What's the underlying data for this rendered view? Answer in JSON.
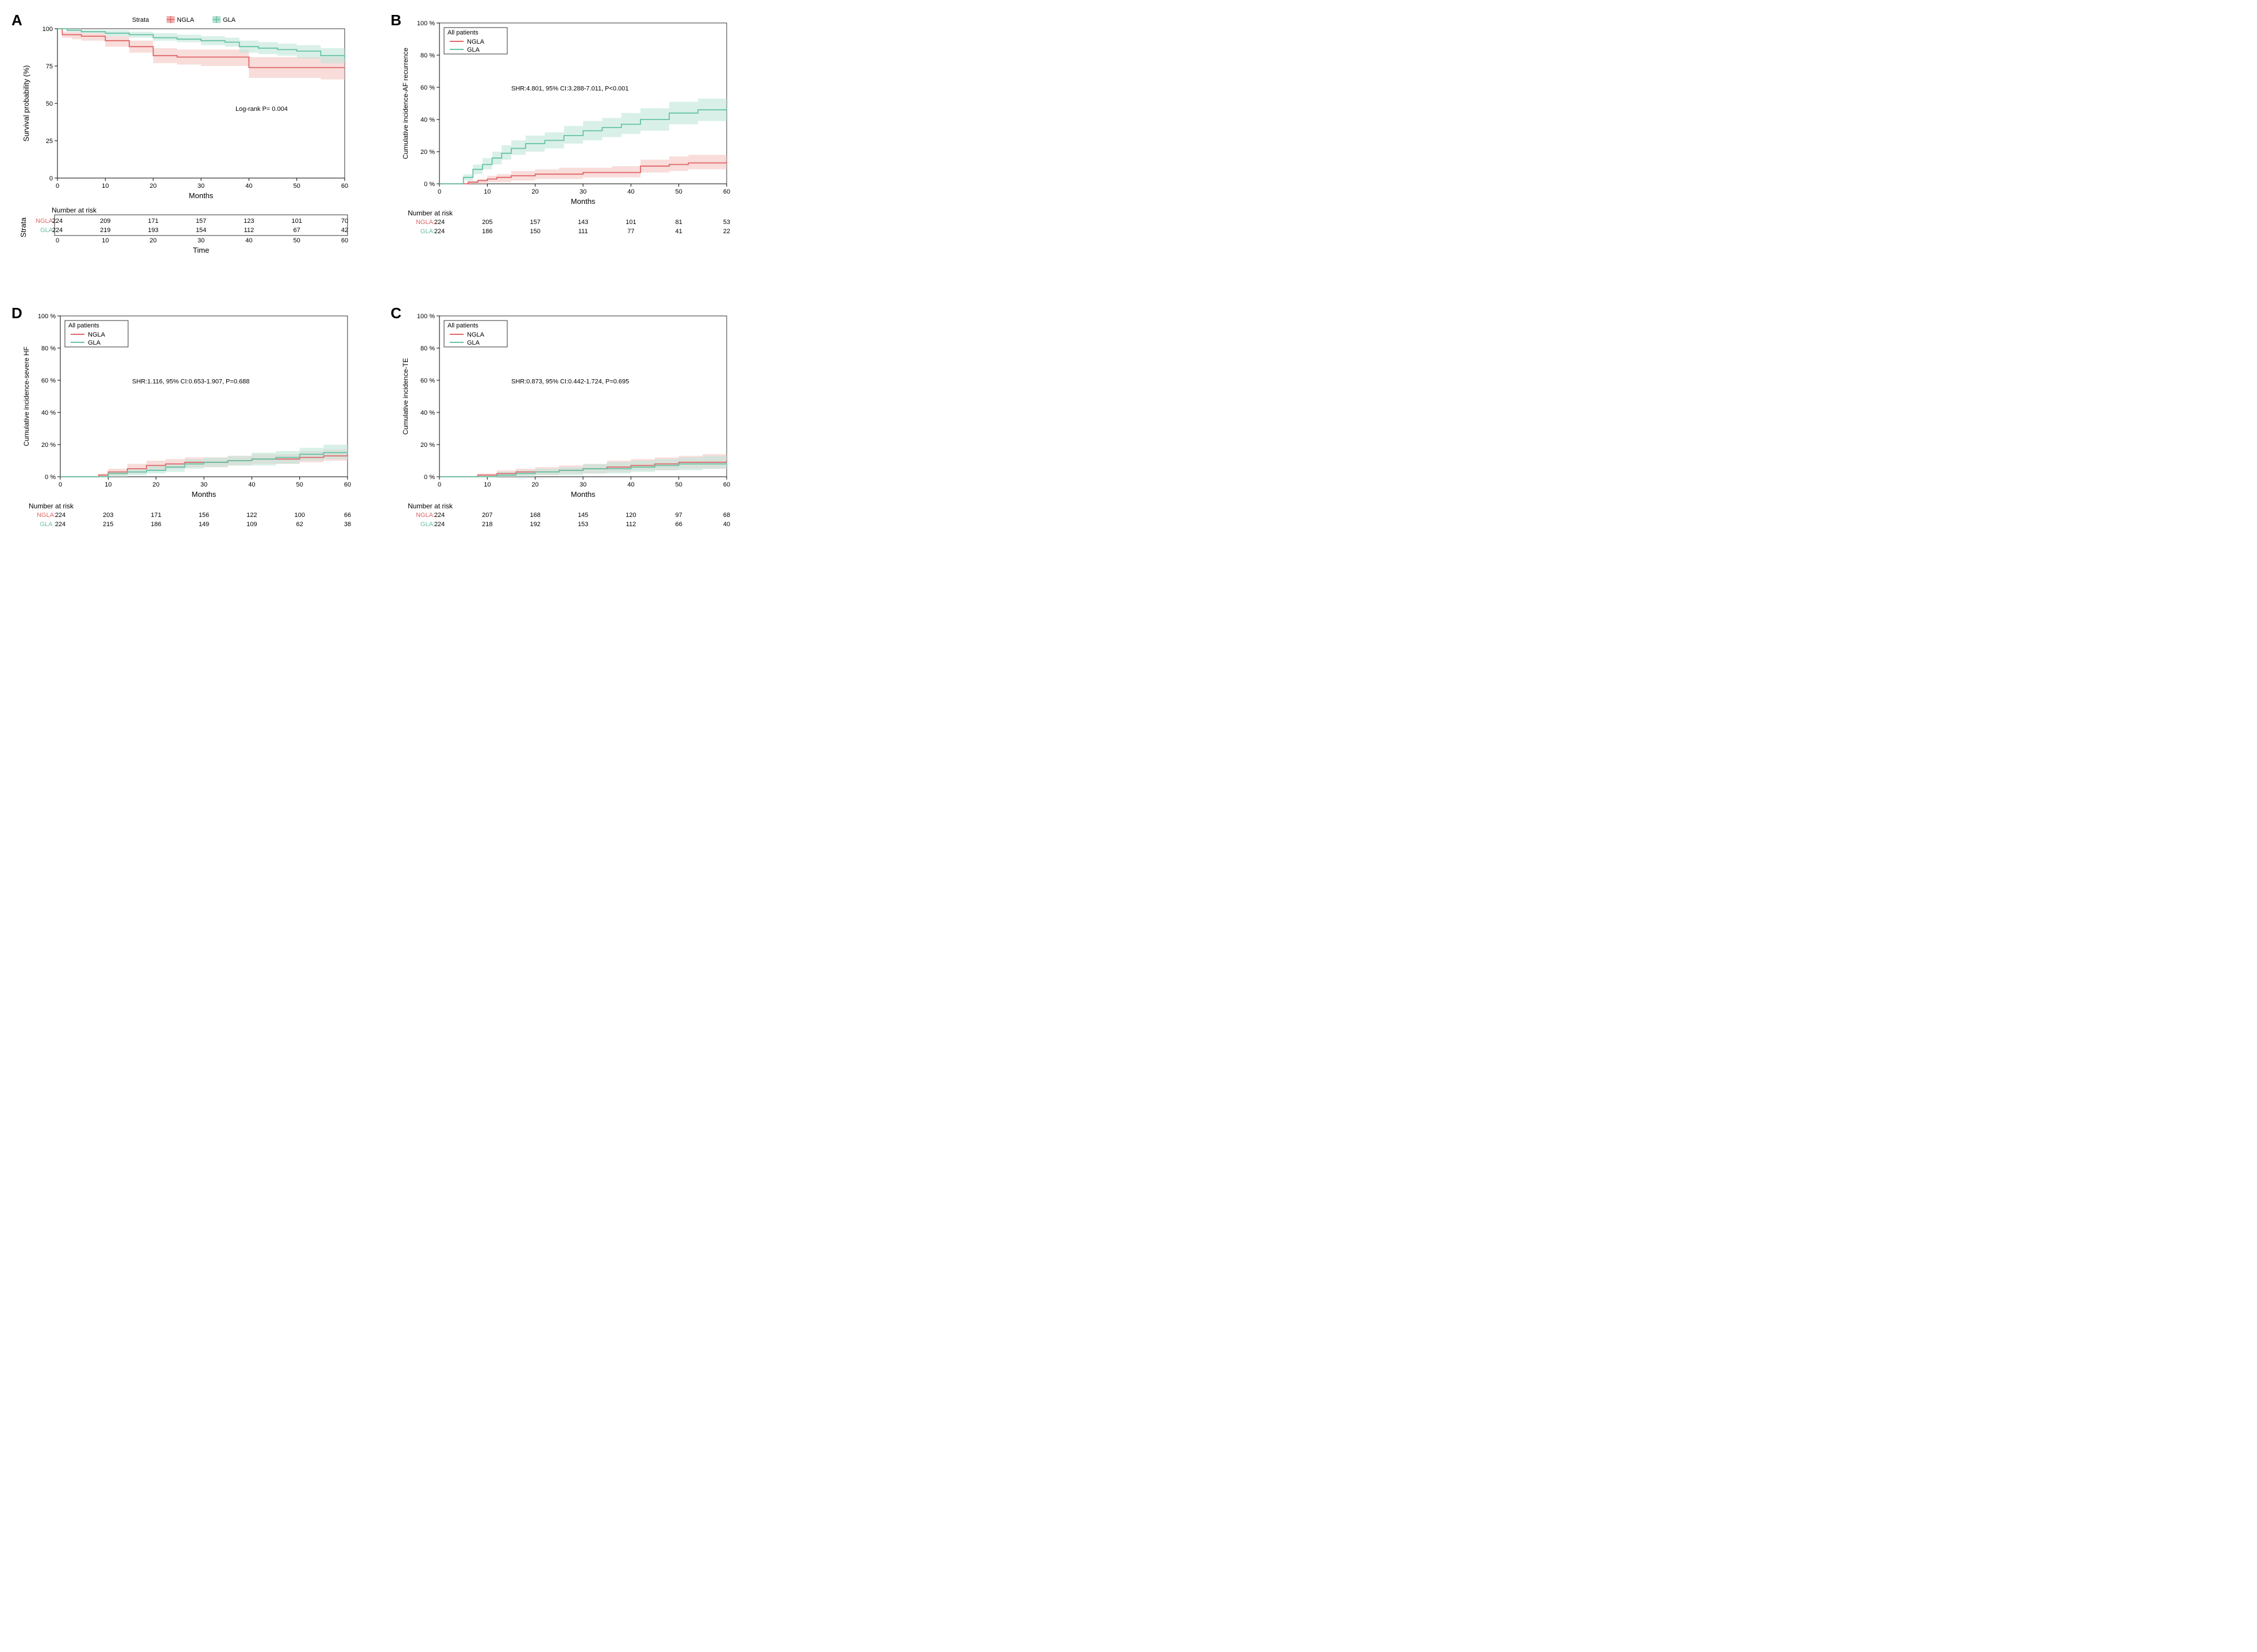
{
  "colors": {
    "ngla": "#e06666",
    "gla": "#66c2a5",
    "ngla_ci": "#f4c7c3",
    "gla_ci": "#c0e6d9",
    "axis": "#000000",
    "grid": "#d0d0d0",
    "bg": "#ffffff"
  },
  "panelA": {
    "label": "A",
    "type": "kaplan-meier",
    "xlabel": "Months",
    "ylabel": "Survival probability (%)",
    "annotation": "Log-rank  P= 0.004",
    "strata_header": "Strata",
    "legend": [
      {
        "key": "NGLA",
        "color": "#e06666",
        "marker": "plus"
      },
      {
        "key": "GLA",
        "color": "#66c2a5",
        "marker": "plus"
      }
    ],
    "xlim": [
      0,
      60
    ],
    "xtick_step": 10,
    "ylim": [
      0,
      100
    ],
    "ytick_step": 25,
    "series": {
      "NGLA": {
        "color": "#e06666",
        "ci_color": "#f4c7c3",
        "x": [
          0,
          1,
          3,
          5,
          10,
          15,
          20,
          25,
          30,
          35,
          40,
          45,
          50,
          55,
          60
        ],
        "y": [
          100,
          96,
          96,
          95,
          92,
          88,
          82,
          81,
          81,
          81,
          74,
          74,
          74,
          74,
          74
        ],
        "lo": [
          100,
          94,
          93,
          92,
          88,
          84,
          77,
          76,
          75,
          75,
          67,
          67,
          67,
          66,
          66
        ],
        "hi": [
          100,
          98,
          98,
          97,
          95,
          92,
          87,
          86,
          86,
          86,
          81,
          81,
          81,
          81,
          81
        ]
      },
      "GLA": {
        "color": "#66c2a5",
        "ci_color": "#c0e6d9",
        "x": [
          0,
          2,
          5,
          10,
          15,
          20,
          25,
          30,
          35,
          38,
          42,
          46,
          50,
          55,
          60
        ],
        "y": [
          100,
          99,
          98,
          97,
          96,
          94,
          93,
          92,
          91,
          88,
          87,
          86,
          85,
          82,
          80
        ],
        "lo": [
          100,
          98,
          97,
          95,
          94,
          92,
          91,
          89,
          88,
          84,
          83,
          82,
          80,
          77,
          74
        ],
        "hi": [
          100,
          100,
          99,
          99,
          98,
          97,
          96,
          95,
          94,
          92,
          91,
          90,
          89,
          87,
          86
        ]
      }
    },
    "risk_table": {
      "title": "Number at risk",
      "time_label": "Time",
      "strata_axis_label": "Strata",
      "times": [
        0,
        10,
        20,
        30,
        40,
        50,
        60
      ],
      "rows": [
        {
          "label": "NGLA",
          "color": "#e06666",
          "values": [
            224,
            209,
            171,
            157,
            123,
            101,
            70
          ]
        },
        {
          "label": "GLA",
          "color": "#66c2a5",
          "values": [
            224,
            219,
            193,
            154,
            112,
            67,
            42
          ]
        }
      ]
    }
  },
  "panelB": {
    "label": "B",
    "type": "cumulative-incidence",
    "subtitle": "All patients",
    "xlabel": "Months",
    "ylabel": "Cumulative incidence-AF recurrence",
    "annotation": "SHR:4.801, 95% CI:3.288-7.011, P<0.001",
    "legend": [
      {
        "key": "NGLA",
        "color": "#e06666"
      },
      {
        "key": "GLA",
        "color": "#66c2a5"
      }
    ],
    "xlim": [
      0,
      60
    ],
    "xtick_step": 10,
    "ylim": [
      0,
      100
    ],
    "ytick_step": 20,
    "ytick_suffix": " %",
    "series": {
      "NGLA": {
        "color": "#e06666",
        "ci_color": "#f4c7c3",
        "x": [
          0,
          4,
          6,
          8,
          10,
          12,
          15,
          20,
          25,
          30,
          36,
          42,
          48,
          52,
          60
        ],
        "y": [
          0,
          0,
          1,
          2,
          3,
          4,
          5,
          6,
          6,
          7,
          7,
          11,
          12,
          13,
          14
        ],
        "lo": [
          0,
          0,
          0,
          0,
          1,
          1,
          2,
          3,
          3,
          4,
          4,
          7,
          8,
          9,
          9
        ],
        "hi": [
          0,
          0,
          2,
          3,
          5,
          6,
          8,
          9,
          10,
          10,
          11,
          15,
          17,
          18,
          19
        ]
      },
      "GLA": {
        "color": "#66c2a5",
        "ci_color": "#c0e6d9",
        "x": [
          0,
          3,
          5,
          7,
          9,
          11,
          13,
          15,
          18,
          22,
          26,
          30,
          34,
          38,
          42,
          48,
          54,
          60
        ],
        "y": [
          0,
          0,
          4,
          9,
          12,
          16,
          19,
          22,
          25,
          27,
          30,
          33,
          35,
          37,
          40,
          44,
          46,
          47
        ],
        "lo": [
          0,
          0,
          2,
          6,
          9,
          12,
          15,
          18,
          20,
          22,
          25,
          27,
          29,
          31,
          33,
          37,
          39,
          40
        ],
        "hi": [
          0,
          0,
          6,
          12,
          16,
          20,
          24,
          27,
          30,
          32,
          36,
          39,
          41,
          44,
          47,
          51,
          53,
          55
        ]
      }
    },
    "risk_table": {
      "title": "Number at risk",
      "times": [
        0,
        10,
        20,
        30,
        40,
        50,
        60
      ],
      "rows": [
        {
          "label": "NGLA:",
          "color": "#e06666",
          "values": [
            224,
            205,
            157,
            143,
            101,
            81,
            53
          ]
        },
        {
          "label": "GLA:",
          "color": "#66c2a5",
          "values": [
            224,
            186,
            150,
            111,
            77,
            41,
            22
          ]
        }
      ]
    }
  },
  "panelC": {
    "label": "C",
    "type": "cumulative-incidence",
    "subtitle": "All patients",
    "xlabel": "Months",
    "ylabel": "Cumulative incidence-TE",
    "annotation": "SHR:0.873, 95% CI:0.442-1.724, P=0.695",
    "legend": [
      {
        "key": "NGLA",
        "color": "#e06666"
      },
      {
        "key": "GLA",
        "color": "#66c2a5"
      }
    ],
    "xlim": [
      0,
      60
    ],
    "xtick_step": 10,
    "ylim": [
      0,
      100
    ],
    "ytick_step": 20,
    "ytick_suffix": " %",
    "series": {
      "NGLA": {
        "color": "#e06666",
        "ci_color": "#f4c7c3",
        "x": [
          0,
          4,
          8,
          12,
          16,
          20,
          25,
          30,
          35,
          40,
          45,
          50,
          55,
          60
        ],
        "y": [
          0,
          0,
          1,
          2,
          3,
          3,
          4,
          5,
          6,
          7,
          8,
          9,
          9,
          10
        ],
        "lo": [
          0,
          0,
          0,
          0,
          1,
          1,
          2,
          2,
          3,
          4,
          4,
          5,
          5,
          6
        ],
        "hi": [
          0,
          0,
          2,
          4,
          5,
          6,
          7,
          8,
          10,
          11,
          12,
          13,
          14,
          15
        ]
      },
      "GLA": {
        "color": "#66c2a5",
        "ci_color": "#c0e6d9",
        "x": [
          0,
          4,
          8,
          12,
          16,
          20,
          25,
          30,
          35,
          40,
          45,
          50,
          55,
          60
        ],
        "y": [
          0,
          0,
          0,
          1,
          2,
          3,
          4,
          5,
          5,
          6,
          7,
          8,
          8,
          9
        ],
        "lo": [
          0,
          0,
          0,
          0,
          0,
          1,
          1,
          2,
          2,
          3,
          4,
          4,
          5,
          5
        ],
        "hi": [
          0,
          0,
          1,
          3,
          4,
          5,
          6,
          8,
          9,
          10,
          11,
          12,
          13,
          14
        ]
      }
    },
    "risk_table": {
      "title": "Number at risk",
      "times": [
        0,
        10,
        20,
        30,
        40,
        50,
        60
      ],
      "rows": [
        {
          "label": "NGLA:",
          "color": "#e06666",
          "values": [
            224,
            207,
            168,
            145,
            120,
            97,
            68
          ]
        },
        {
          "label": "GLA:",
          "color": "#66c2a5",
          "values": [
            224,
            218,
            192,
            153,
            112,
            66,
            40
          ]
        }
      ]
    }
  },
  "panelD": {
    "label": "D",
    "type": "cumulative-incidence",
    "subtitle": "All patients",
    "xlabel": "Months",
    "ylabel": "Cumulative incidence-severe HF",
    "annotation": "SHR:1.116, 95% CI:0.653-1.907, P=0.688",
    "legend": [
      {
        "key": "NGLA",
        "color": "#e06666"
      },
      {
        "key": "GLA",
        "color": "#66c2a5"
      }
    ],
    "xlim": [
      0,
      60
    ],
    "xtick_step": 10,
    "ylim": [
      0,
      100
    ],
    "ytick_step": 20,
    "ytick_suffix": " %",
    "series": {
      "NGLA": {
        "color": "#e06666",
        "ci_color": "#f4c7c3",
        "x": [
          0,
          5,
          8,
          10,
          14,
          18,
          22,
          26,
          30,
          35,
          40,
          45,
          50,
          55,
          60
        ],
        "y": [
          0,
          0,
          1,
          3,
          5,
          7,
          8,
          9,
          9,
          10,
          11,
          11,
          12,
          13,
          14
        ],
        "lo": [
          0,
          0,
          0,
          1,
          2,
          4,
          5,
          6,
          6,
          7,
          8,
          8,
          9,
          10,
          10
        ],
        "hi": [
          0,
          0,
          2,
          5,
          8,
          10,
          11,
          12,
          12,
          13,
          14,
          14,
          16,
          17,
          18
        ]
      },
      "GLA": {
        "color": "#66c2a5",
        "ci_color": "#c0e6d9",
        "x": [
          0,
          5,
          8,
          10,
          14,
          18,
          22,
          26,
          30,
          35,
          40,
          45,
          50,
          55,
          60
        ],
        "y": [
          0,
          0,
          0,
          2,
          3,
          4,
          6,
          8,
          9,
          10,
          11,
          12,
          14,
          15,
          16
        ],
        "lo": [
          0,
          0,
          0,
          0,
          1,
          2,
          3,
          5,
          6,
          7,
          7,
          8,
          10,
          11,
          11
        ],
        "hi": [
          0,
          0,
          1,
          3,
          5,
          7,
          8,
          11,
          12,
          13,
          15,
          16,
          18,
          20,
          21
        ]
      }
    },
    "risk_table": {
      "title": "Number at risk",
      "times": [
        0,
        10,
        20,
        30,
        40,
        50,
        60
      ],
      "rows": [
        {
          "label": "NGLA:",
          "color": "#e06666",
          "values": [
            224,
            203,
            171,
            156,
            122,
            100,
            66
          ]
        },
        {
          "label": "GLA :",
          "color": "#66c2a5",
          "values": [
            224,
            215,
            186,
            149,
            109,
            62,
            38
          ]
        }
      ]
    }
  }
}
